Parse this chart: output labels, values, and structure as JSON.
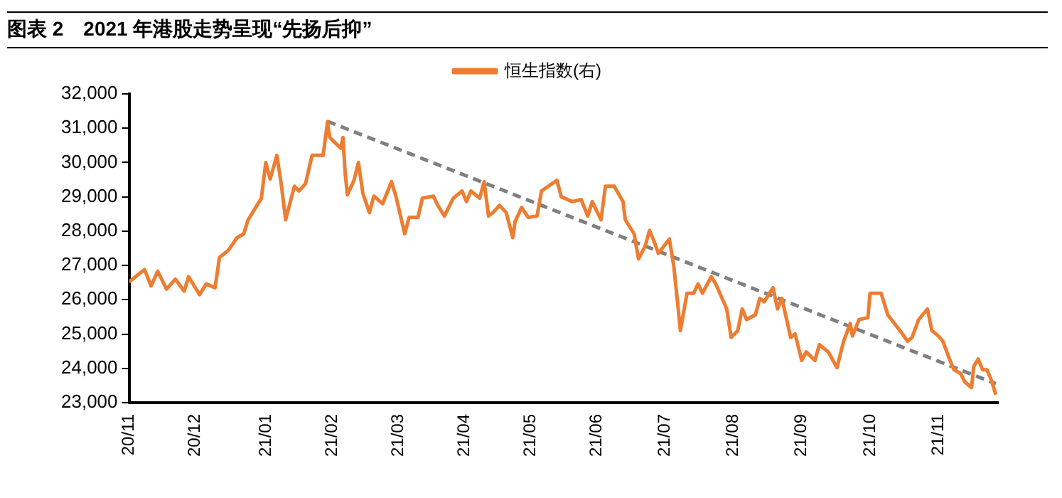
{
  "chart_data": {
    "type": "line",
    "title": "图表 2　2021 年港股走势呈现“先扬后抑”",
    "legend": "top",
    "marker": "none",
    "grid": false,
    "xlim": [
      "2020-11-19",
      "2021-12-18"
    ],
    "xticks": [
      {
        "value": "2020-11-19",
        "label": "20/11"
      },
      {
        "value": "2020-12-19",
        "label": "20/12"
      },
      {
        "value": "2021-01-20",
        "label": "21/01"
      },
      {
        "value": "2021-02-19",
        "label": "21/02"
      },
      {
        "value": "2021-03-21",
        "label": "21/03"
      },
      {
        "value": "2021-04-20",
        "label": "21/04"
      },
      {
        "value": "2021-05-20",
        "label": "21/05"
      },
      {
        "value": "2021-06-19",
        "label": "21/06"
      },
      {
        "value": "2021-07-20",
        "label": "21/07"
      },
      {
        "value": "2021-08-20",
        "label": "21/08"
      },
      {
        "value": "2021-09-20",
        "label": "21/09"
      },
      {
        "value": "2021-10-21",
        "label": "21/10"
      },
      {
        "value": "2021-11-21",
        "label": "21/11"
      }
    ],
    "ylim": [
      23000,
      32000
    ],
    "yticks": [
      {
        "value": 23000,
        "label": "23,000"
      },
      {
        "value": 24000,
        "label": "24,000"
      },
      {
        "value": 25000,
        "label": "25,000"
      },
      {
        "value": 26000,
        "label": "26,000"
      },
      {
        "value": 27000,
        "label": "27,000"
      },
      {
        "value": 28000,
        "label": "28,000"
      },
      {
        "value": 29000,
        "label": "29,000"
      },
      {
        "value": 30000,
        "label": "30,000"
      },
      {
        "value": 31000,
        "label": "31,000"
      },
      {
        "value": 32000,
        "label": "32,000"
      }
    ],
    "series": [
      {
        "name": "恒生指数(右)",
        "color": "#ed7d31",
        "line_style": "solid",
        "x": [
          "2020-11-19",
          "2020-11-26",
          "2020-11-29",
          "2020-12-02",
          "2020-12-06",
          "2020-12-10",
          "2020-12-14",
          "2020-12-16",
          "2020-12-21",
          "2020-12-24",
          "2020-12-28",
          "2020-12-30",
          "2021-01-03",
          "2021-01-07",
          "2021-01-10",
          "2021-01-12",
          "2021-01-18",
          "2021-01-20",
          "2021-01-22",
          "2021-01-25",
          "2021-01-27",
          "2021-01-29",
          "2021-02-02",
          "2021-02-04",
          "2021-02-07",
          "2021-02-10",
          "2021-02-15",
          "2021-02-17",
          "2021-02-18",
          "2021-02-23",
          "2021-02-24",
          "2021-02-25",
          "2021-02-26",
          "2021-03-01",
          "2021-03-03",
          "2021-03-05",
          "2021-03-08",
          "2021-03-10",
          "2021-03-14",
          "2021-03-18",
          "2021-03-20",
          "2021-03-24",
          "2021-03-26",
          "2021-03-30",
          "2021-04-01",
          "2021-04-06",
          "2021-04-08",
          "2021-04-11",
          "2021-04-15",
          "2021-04-19",
          "2021-04-21",
          "2021-04-23",
          "2021-04-27",
          "2021-04-29",
          "2021-05-01",
          "2021-05-03",
          "2021-05-06",
          "2021-05-09",
          "2021-05-12",
          "2021-05-13",
          "2021-05-16",
          "2021-05-19",
          "2021-05-23",
          "2021-05-25",
          "2021-06-01",
          "2021-06-03",
          "2021-06-08",
          "2021-06-12",
          "2021-06-15",
          "2021-06-17",
          "2021-06-21",
          "2021-06-23",
          "2021-06-27",
          "2021-07-01",
          "2021-07-02",
          "2021-07-06",
          "2021-07-08",
          "2021-07-11",
          "2021-07-13",
          "2021-07-15",
          "2021-07-17",
          "2021-07-22",
          "2021-07-24",
          "2021-07-27",
          "2021-07-30",
          "2021-08-02",
          "2021-08-04",
          "2021-08-06",
          "2021-08-10",
          "2021-08-12",
          "2021-08-17",
          "2021-08-19",
          "2021-08-22",
          "2021-08-24",
          "2021-08-26",
          "2021-08-30",
          "2021-09-01",
          "2021-09-03",
          "2021-09-07",
          "2021-09-09",
          "2021-09-11",
          "2021-09-15",
          "2021-09-17",
          "2021-09-20",
          "2021-09-22",
          "2021-09-26",
          "2021-09-28",
          "2021-10-02",
          "2021-10-06",
          "2021-10-09",
          "2021-10-12",
          "2021-10-13",
          "2021-10-16",
          "2021-10-20",
          "2021-10-21",
          "2021-10-26",
          "2021-10-29",
          "2021-11-01",
          "2021-11-04",
          "2021-11-07",
          "2021-11-09",
          "2021-11-12",
          "2021-11-16",
          "2021-11-18",
          "2021-11-21",
          "2021-11-23",
          "2021-11-26",
          "2021-11-28",
          "2021-12-01",
          "2021-12-03",
          "2021-12-06",
          "2021-12-07",
          "2021-12-09",
          "2021-12-11",
          "2021-12-13",
          "2021-12-15",
          "2021-12-17"
        ],
        "values": [
          26520,
          26880,
          26400,
          26830,
          26310,
          26600,
          26250,
          26670,
          26150,
          26460,
          26350,
          27230,
          27440,
          27810,
          27920,
          28330,
          28960,
          30000,
          29520,
          30210,
          29380,
          28330,
          29310,
          29170,
          29380,
          30210,
          30210,
          31190,
          30730,
          30420,
          30730,
          29690,
          29060,
          29480,
          30000,
          29110,
          28540,
          29020,
          28800,
          29440,
          29020,
          27920,
          28400,
          28400,
          28960,
          29020,
          28750,
          28440,
          28960,
          29170,
          28860,
          29170,
          28960,
          29440,
          28440,
          28540,
          28750,
          28540,
          27810,
          28270,
          28690,
          28400,
          28440,
          29170,
          29480,
          29000,
          28860,
          28920,
          28440,
          28860,
          28330,
          29310,
          29310,
          28860,
          28330,
          27920,
          27190,
          27560,
          28020,
          27710,
          27350,
          27770,
          26980,
          25100,
          26190,
          26190,
          26460,
          26190,
          26670,
          26460,
          25730,
          24900,
          25100,
          25730,
          25420,
          25560,
          26040,
          25940,
          26350,
          25730,
          26040,
          24900,
          25000,
          24230,
          24480,
          24230,
          24690,
          24480,
          24020,
          24790,
          25310,
          24940,
          25420,
          25480,
          26190,
          26190,
          25560,
          25310,
          25060,
          24790,
          24900,
          25420,
          25730,
          25100,
          24940,
          24790,
          24270,
          23960,
          23850,
          23600,
          23440,
          24060,
          24270,
          23960,
          23960,
          23650,
          23230
        ]
      },
      {
        "type": "line",
        "color": "#808080",
        "line_style": "dashed",
        "x": [
          "2021-02-17",
          "2021-12-17"
        ],
        "values": [
          31200,
          23550
        ]
      }
    ]
  }
}
